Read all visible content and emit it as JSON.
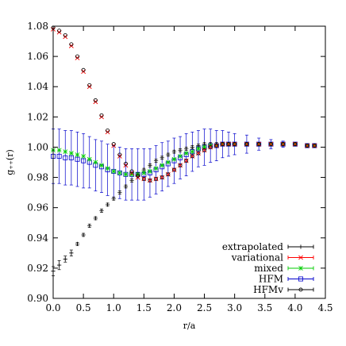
{
  "chart_data": {
    "type": "line",
    "xlabel": "r/a",
    "ylabel": "g₊₊(r)",
    "xlim": [
      0.0,
      4.5
    ],
    "ylim": [
      0.9,
      1.08
    ],
    "xticks": [
      0.0,
      0.5,
      1.0,
      1.5,
      2.0,
      2.5,
      3.0,
      3.5,
      4.0,
      4.5
    ],
    "xtick_labels": [
      "0.0",
      "0.5",
      "1.0",
      "1.5",
      "2.0",
      "2.5",
      "3.0",
      "3.5",
      "4.0",
      "4.5"
    ],
    "yticks": [
      0.9,
      0.92,
      0.94,
      0.96,
      0.98,
      1.0,
      1.02,
      1.04,
      1.06,
      1.08
    ],
    "ytick_labels": [
      "0.90",
      "0.92",
      "0.94",
      "0.96",
      "0.98",
      "1.00",
      "1.02",
      "1.04",
      "1.06",
      "1.08"
    ],
    "grid": false,
    "legend_position": "bottom-right",
    "series": [
      {
        "name": "extrapolated",
        "color": "#000000",
        "marker": "plus",
        "x": [
          0.0,
          0.1,
          0.2,
          0.3,
          0.4,
          0.5,
          0.6,
          0.7,
          0.8,
          0.9,
          1.0,
          1.1,
          1.2,
          1.3,
          1.4,
          1.5,
          1.6,
          1.7,
          1.8,
          1.9,
          2.0,
          2.1,
          2.2,
          2.3,
          2.4,
          2.5,
          2.6,
          2.7,
          2.8,
          2.9,
          3.0,
          3.2,
          3.4,
          3.6,
          3.8,
          4.0,
          4.2,
          4.32
        ],
        "y": [
          0.918,
          0.922,
          0.926,
          0.93,
          0.936,
          0.942,
          0.948,
          0.953,
          0.958,
          0.962,
          0.966,
          0.97,
          0.974,
          0.978,
          0.982,
          0.985,
          0.988,
          0.991,
          0.993,
          0.995,
          0.997,
          0.998,
          0.999,
          1.0,
          1.001,
          1.002,
          1.002,
          1.002,
          1.002,
          1.002,
          1.002,
          1.002,
          1.002,
          1.002,
          1.002,
          1.002,
          1.001,
          1.001
        ],
        "err": [
          0.003,
          0.003,
          0.002,
          0.002,
          0.001,
          0.001,
          0.001,
          0.001,
          0.001,
          0.001,
          0.001,
          0.001,
          0.001,
          0.001,
          0.001,
          0.001,
          0.001,
          0.001,
          0.001,
          0.001,
          0.001,
          0.001,
          0.001,
          0.001,
          0.001,
          0.001,
          0.001,
          0.001,
          0.001,
          0.001,
          0.001,
          0.001,
          0.001,
          0.001,
          0.001,
          0.001,
          0.001,
          0.001
        ]
      },
      {
        "name": "variational",
        "color": "#ff0000",
        "marker": "cross",
        "x": [
          0.0,
          0.1,
          0.2,
          0.3,
          0.4,
          0.5,
          0.6,
          0.7,
          0.8,
          0.9,
          1.0,
          1.1,
          1.2,
          1.3,
          1.4,
          1.5,
          1.6,
          1.7,
          1.8,
          1.9,
          2.0,
          2.1,
          2.2,
          2.3,
          2.4,
          2.5,
          2.6,
          2.7,
          2.8,
          2.9,
          3.0,
          3.2,
          3.4,
          3.6,
          3.8,
          4.0,
          4.2,
          4.32
        ],
        "y": [
          1.078,
          1.076,
          1.073,
          1.067,
          1.059,
          1.05,
          1.04,
          1.03,
          1.02,
          1.01,
          1.001,
          0.994,
          0.988,
          0.983,
          0.98,
          0.979,
          0.978,
          0.979,
          0.98,
          0.982,
          0.985,
          0.988,
          0.991,
          0.994,
          0.996,
          0.998,
          1.0,
          1.001,
          1.002,
          1.002,
          1.002,
          1.002,
          1.002,
          1.002,
          1.002,
          1.002,
          1.001,
          1.001
        ]
      },
      {
        "name": "mixed",
        "color": "#00cc00",
        "marker": "star",
        "x": [
          0.0,
          0.1,
          0.2,
          0.3,
          0.4,
          0.5,
          0.6,
          0.7,
          0.8,
          0.9,
          1.0,
          1.1,
          1.2,
          1.3,
          1.4,
          1.5,
          1.6,
          1.7,
          1.8,
          1.9,
          2.0,
          2.1,
          2.2,
          2.3,
          2.4,
          2.5,
          2.6,
          2.7,
          2.8,
          2.9,
          3.0,
          3.2,
          3.4,
          3.6,
          3.8,
          4.0,
          4.2,
          4.32
        ],
        "y": [
          0.998,
          0.998,
          0.997,
          0.996,
          0.995,
          0.994,
          0.992,
          0.99,
          0.988,
          0.986,
          0.984,
          0.983,
          0.982,
          0.982,
          0.982,
          0.983,
          0.984,
          0.986,
          0.988,
          0.99,
          0.992,
          0.994,
          0.996,
          0.997,
          0.999,
          1.0,
          1.001,
          1.001,
          1.002,
          1.002,
          1.002,
          1.002,
          1.002,
          1.002,
          1.002,
          1.002,
          1.001,
          1.001
        ]
      },
      {
        "name": "HFM",
        "color": "#0000cc",
        "marker": "square",
        "x": [
          0.0,
          0.1,
          0.2,
          0.3,
          0.4,
          0.5,
          0.6,
          0.7,
          0.8,
          0.9,
          1.0,
          1.1,
          1.2,
          1.3,
          1.4,
          1.5,
          1.6,
          1.7,
          1.8,
          1.9,
          2.0,
          2.1,
          2.2,
          2.3,
          2.4,
          2.5,
          2.6,
          2.7,
          2.8,
          2.9,
          3.0,
          3.2,
          3.4,
          3.6,
          3.8,
          4.0,
          4.2,
          4.32
        ],
        "y": [
          0.994,
          0.994,
          0.993,
          0.993,
          0.992,
          0.991,
          0.99,
          0.988,
          0.987,
          0.985,
          0.984,
          0.983,
          0.982,
          0.982,
          0.982,
          0.982,
          0.983,
          0.985,
          0.987,
          0.989,
          0.991,
          0.993,
          0.995,
          0.997,
          0.999,
          1.0,
          1.001,
          1.001,
          1.002,
          1.002,
          1.002,
          1.002,
          1.002,
          1.002,
          1.002,
          1.002,
          1.001,
          1.001
        ],
        "err": [
          0.018,
          0.018,
          0.018,
          0.018,
          0.018,
          0.018,
          0.017,
          0.017,
          0.017,
          0.017,
          0.017,
          0.017,
          0.017,
          0.017,
          0.017,
          0.017,
          0.016,
          0.016,
          0.016,
          0.015,
          0.015,
          0.014,
          0.014,
          0.013,
          0.012,
          0.012,
          0.011,
          0.01,
          0.009,
          0.008,
          0.007,
          0.006,
          0.004,
          0.003,
          0.002,
          0.001,
          0.001,
          0.001
        ]
      },
      {
        "name": "HFMv",
        "color": "#000000",
        "marker": "circle",
        "x": [
          0.0,
          0.1,
          0.2,
          0.3,
          0.4,
          0.5,
          0.6,
          0.7,
          0.8,
          0.9,
          1.0,
          1.1,
          1.2,
          1.3,
          1.4,
          1.5,
          1.6,
          1.7,
          1.8,
          1.9,
          2.0,
          2.1,
          2.2,
          2.3,
          2.4,
          2.5,
          2.6,
          2.7,
          2.8,
          2.9,
          3.0,
          3.2,
          3.4,
          3.6,
          3.8,
          4.0,
          4.2,
          4.32
        ],
        "y": [
          1.079,
          1.077,
          1.074,
          1.068,
          1.06,
          1.051,
          1.041,
          1.031,
          1.021,
          1.011,
          1.002,
          0.995,
          0.989,
          0.984,
          0.981,
          0.979,
          0.978,
          0.979,
          0.98,
          0.982,
          0.985,
          0.988,
          0.991,
          0.994,
          0.996,
          0.998,
          1.0,
          1.001,
          1.002,
          1.002,
          1.002,
          1.002,
          1.002,
          1.002,
          1.002,
          1.002,
          1.001,
          1.001
        ]
      }
    ]
  }
}
